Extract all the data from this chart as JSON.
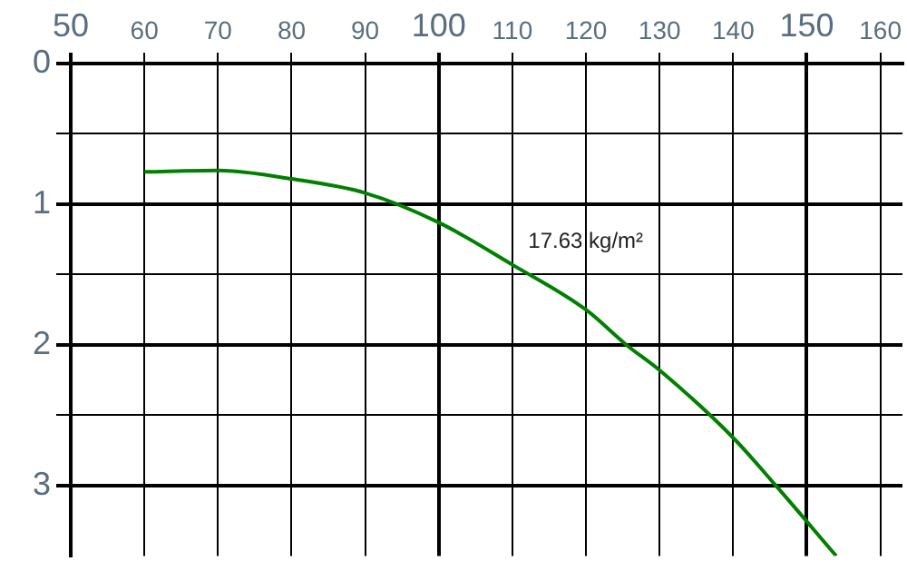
{
  "chart_data": {
    "type": "line",
    "x": [
      60,
      70,
      80,
      90,
      100,
      110,
      120,
      125.5,
      130,
      140,
      145.8,
      154
    ],
    "series": [
      {
        "color": "#008000",
        "values": [
          0.77,
          0.76,
          0.82,
          0.92,
          1.13,
          1.43,
          1.75,
          2.0,
          2.18,
          2.66,
          3.0,
          3.5
        ]
      }
    ],
    "xlim": [
      50,
      163
    ],
    "xticks": [
      50,
      60,
      70,
      80,
      90,
      100,
      110,
      120,
      130,
      140,
      150,
      160
    ],
    "ylim": [
      3.5,
      0
    ],
    "yticks": [
      0,
      {
        "value": 0.5,
        "label": null
      },
      1,
      {
        "value": 1.5,
        "label": null
      },
      2,
      {
        "value": 2.5,
        "label": null
      },
      3
    ],
    "grid": true,
    "legend": false,
    "marker": "none",
    "line_style": "solid",
    "annotations": [
      "17.63 kg/m²"
    ]
  }
}
